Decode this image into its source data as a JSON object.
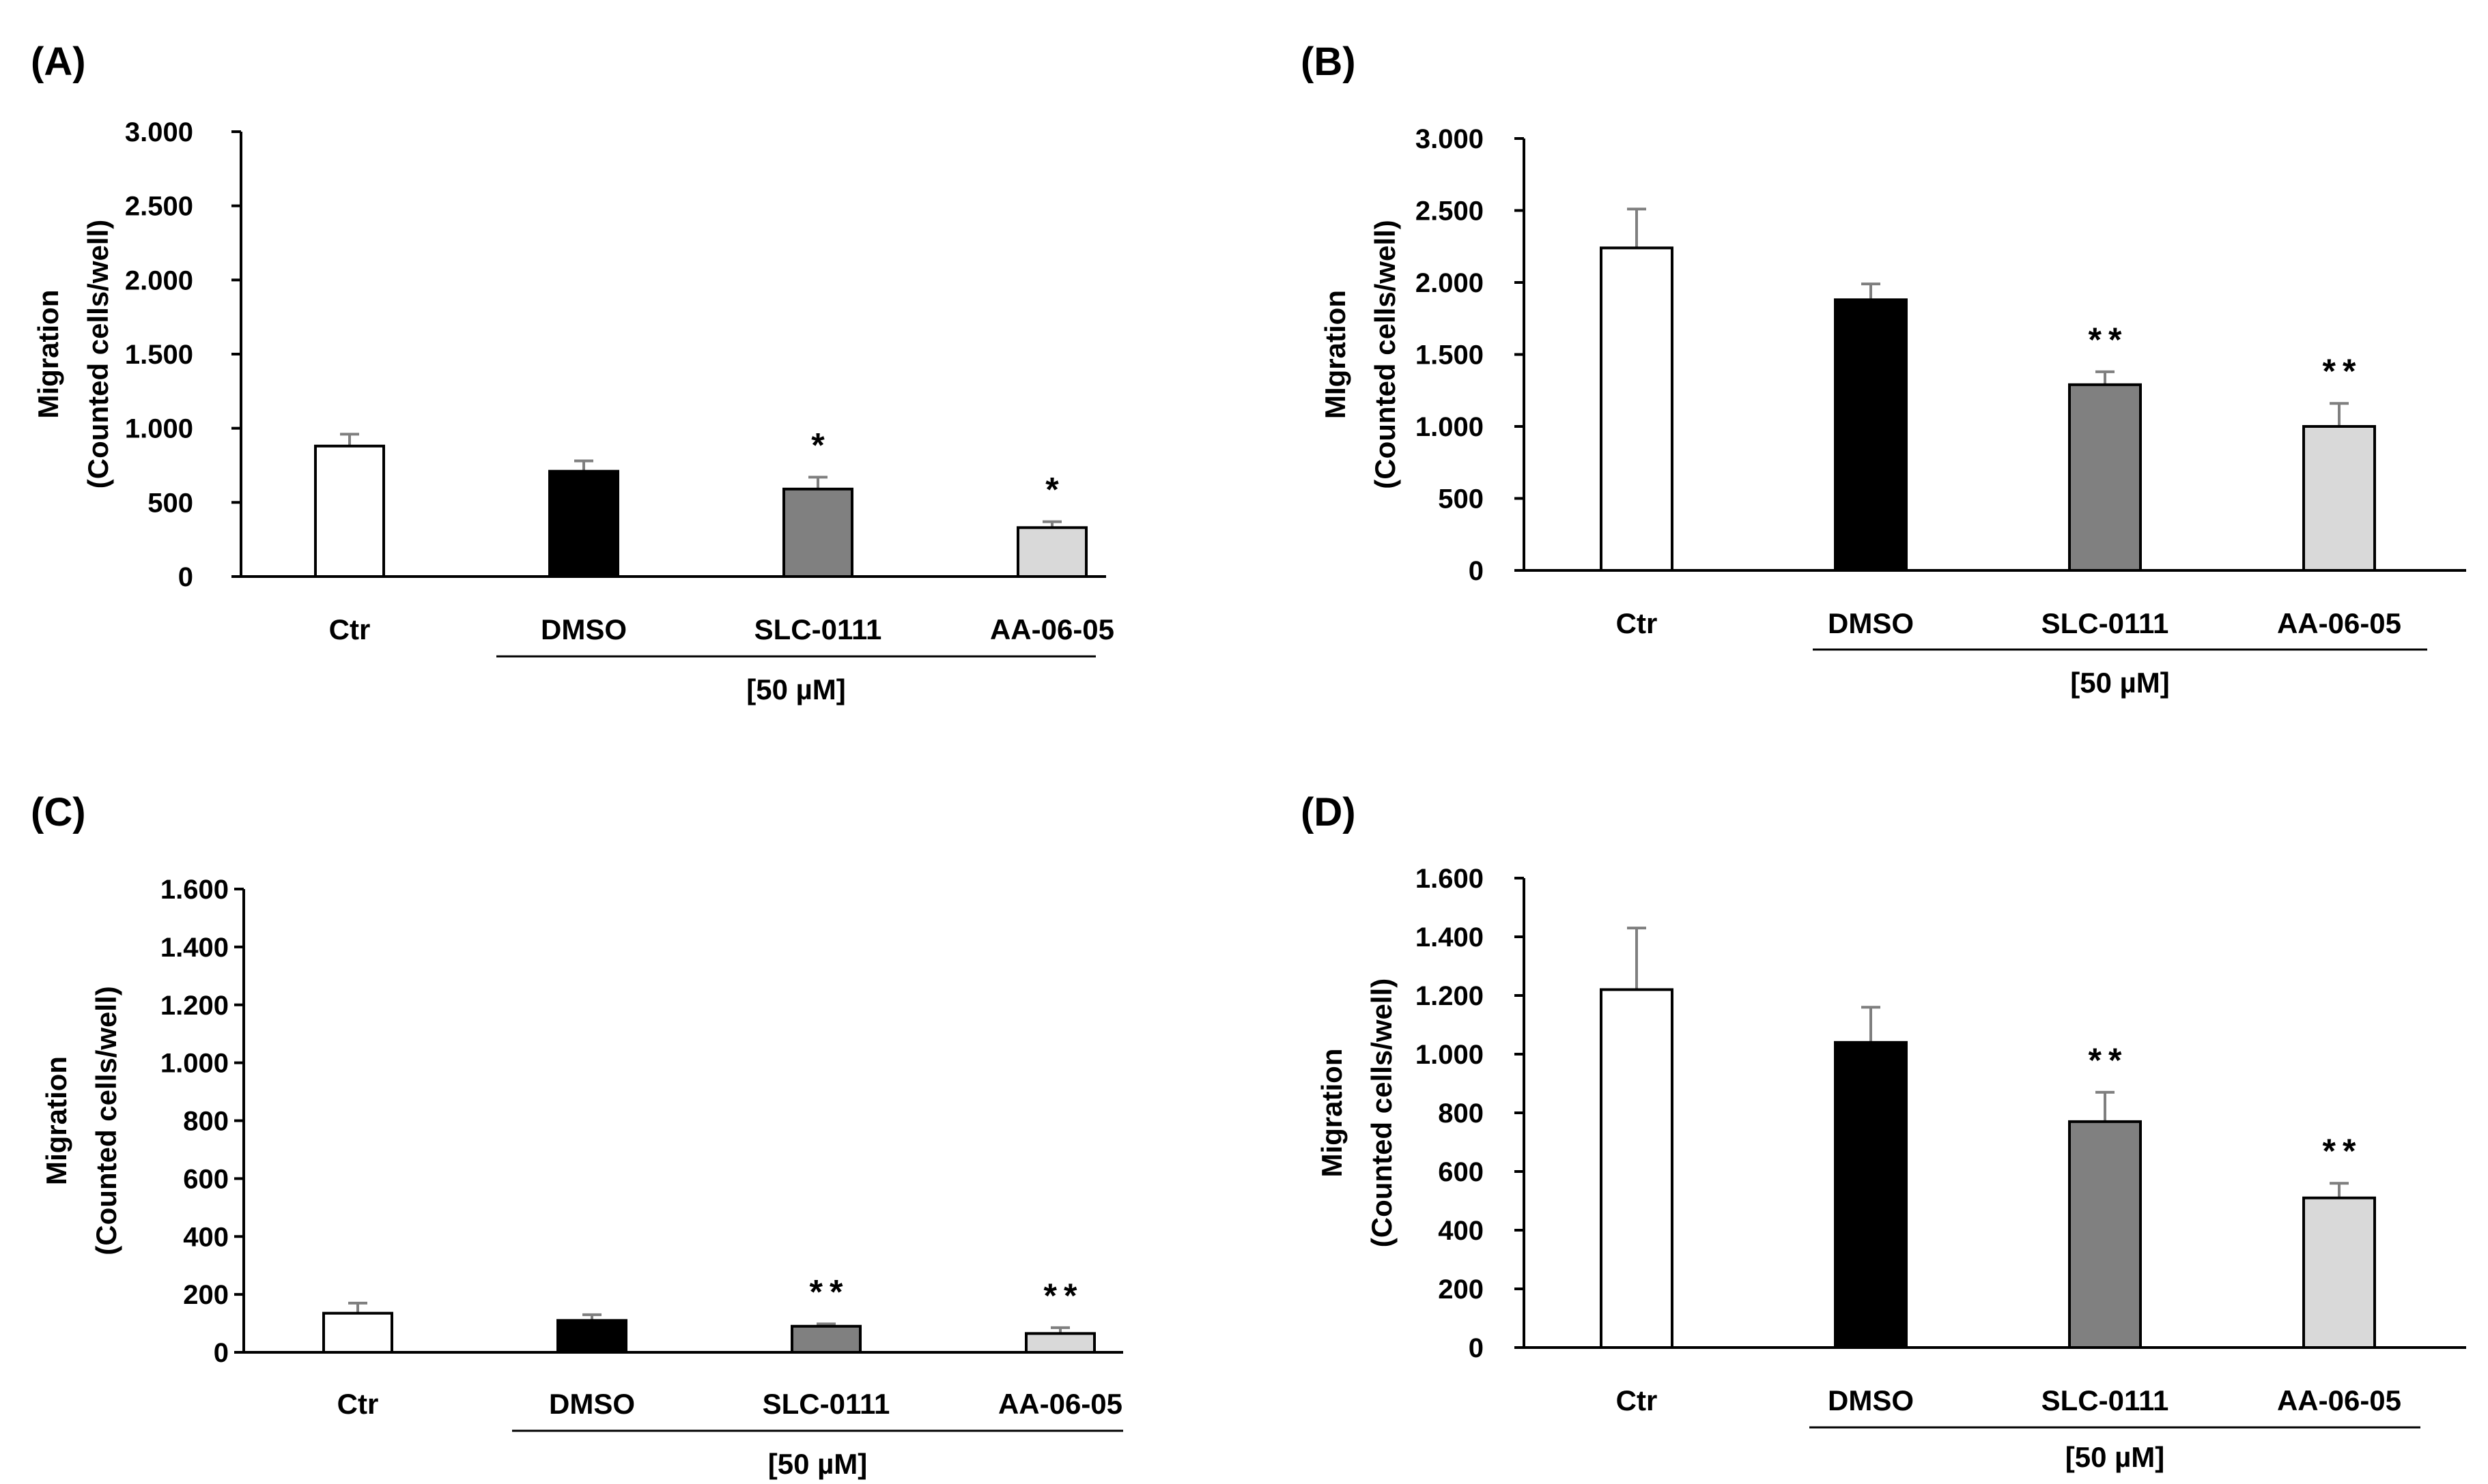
{
  "figure": {
    "bar_colors": [
      "#ffffff",
      "#000000",
      "#808080",
      "#d9d9d9"
    ],
    "bar_edge_color": "#000000",
    "axis_color": "#000000",
    "error_bar_color": "#7f7f7f"
  },
  "chart_data": [
    {
      "panel": "(A)",
      "type": "bar",
      "categories": [
        "Ctr",
        "DMSO",
        "SLC-0111",
        "AA-06-05"
      ],
      "values": [
        880,
        710,
        590,
        330
      ],
      "errors": [
        80,
        70,
        80,
        40
      ],
      "significance": [
        "",
        "",
        "*",
        "*"
      ],
      "ylabel_lines": [
        "Migration",
        "(Counted cells/well)"
      ],
      "ylim": [
        0,
        3000
      ],
      "yticks": [
        0,
        500,
        1000,
        1500,
        2000,
        2500,
        3000
      ],
      "ytick_labels": [
        "0",
        "500",
        "1.000",
        "1.500",
        "2.000",
        "2.500",
        "3.000"
      ],
      "group_label": "[50 µM]"
    },
    {
      "panel": "(B)",
      "type": "bar",
      "categories": [
        "Ctr",
        "DMSO",
        "SLC-0111",
        "AA-06-05"
      ],
      "values": [
        2240,
        1880,
        1290,
        1000
      ],
      "errors": [
        270,
        110,
        90,
        160
      ],
      "significance": [
        "",
        "",
        "**",
        "**"
      ],
      "ylabel_lines": [
        "MIgration",
        "(Counted cells/well)"
      ],
      "ylim": [
        0,
        3000
      ],
      "yticks": [
        0,
        500,
        1000,
        1500,
        2000,
        2500,
        3000
      ],
      "ytick_labels": [
        "0",
        "500",
        "1.000",
        "1.500",
        "2.000",
        "2.500",
        "3.000"
      ],
      "group_label": "[50 µM]"
    },
    {
      "panel": "(C)",
      "type": "bar",
      "categories": [
        "Ctr",
        "DMSO",
        "SLC-0111",
        "AA-06-05"
      ],
      "values": [
        135,
        110,
        90,
        65
      ],
      "errors": [
        35,
        20,
        8,
        20
      ],
      "significance": [
        "",
        "",
        "**",
        "**"
      ],
      "ylabel_lines": [
        "Migration",
        "(Counted cells/well)"
      ],
      "ylim": [
        0,
        1600
      ],
      "yticks": [
        0,
        200,
        400,
        600,
        800,
        1000,
        1200,
        1400,
        1600
      ],
      "ytick_labels": [
        "0",
        "200",
        "400",
        "600",
        "800",
        "1.000",
        "1.200",
        "1.400",
        "1.600"
      ],
      "group_label": "[50 µM]"
    },
    {
      "panel": "(D)",
      "type": "bar",
      "categories": [
        "Ctr",
        "DMSO",
        "SLC-0111",
        "AA-06-05"
      ],
      "values": [
        1220,
        1040,
        770,
        510
      ],
      "errors": [
        210,
        120,
        100,
        50
      ],
      "significance": [
        "",
        "",
        "**",
        "**"
      ],
      "ylabel_lines": [
        "Migration",
        "(Counted cells/well)"
      ],
      "ylim": [
        0,
        1600
      ],
      "yticks": [
        0,
        200,
        400,
        600,
        800,
        1000,
        1200,
        1400,
        1600
      ],
      "ytick_labels": [
        "0",
        "200",
        "400",
        "600",
        "800",
        "1.000",
        "1.200",
        "1.400",
        "1.600"
      ],
      "group_label": "[50 µM]"
    }
  ]
}
